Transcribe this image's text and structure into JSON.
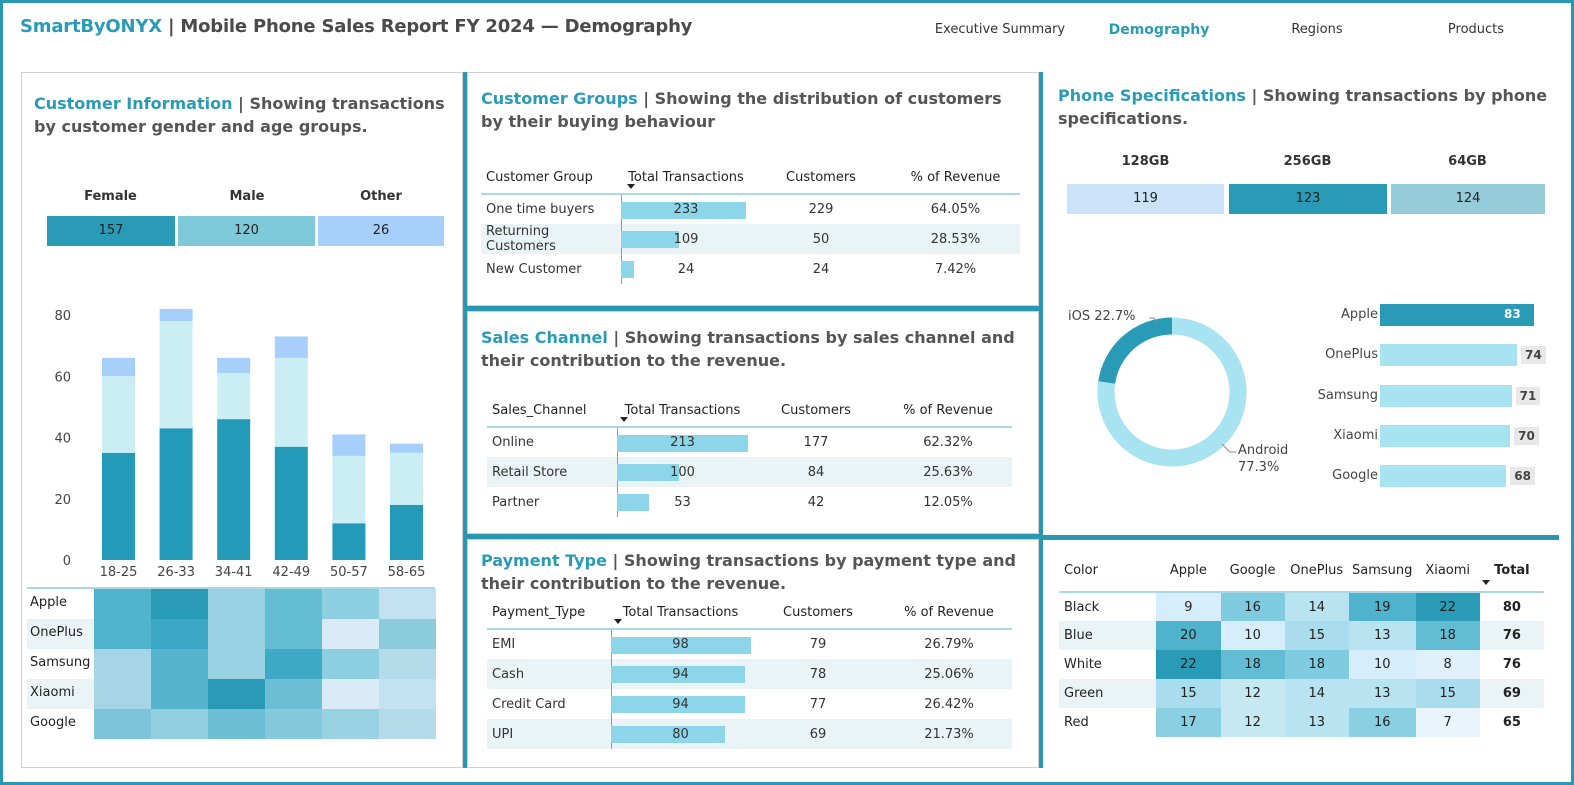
{
  "header": {
    "brand": "SmartByONYX",
    "title": " | Mobile Phone Sales Report FY 2024 — Demography",
    "nav": [
      "Executive Summary",
      "Demography",
      "Regions",
      "Products"
    ],
    "active": "Demography"
  },
  "customer_info": {
    "title_accent": "Customer Information",
    "title_rest": " | Showing transactions by customer gender and age groups.",
    "genders": [
      {
        "label": "Female",
        "value": "157",
        "color": "#2a9bb7"
      },
      {
        "label": "Male",
        "value": "120",
        "color": "#7ecad9"
      },
      {
        "label": "Other",
        "value": "26",
        "color": "#a6cffb"
      }
    ],
    "heatmap_rows": [
      "Apple",
      "OnePlus",
      "Samsung",
      "Xiaomi",
      "Google"
    ]
  },
  "chart_data": {
    "type": "bar",
    "stacked": true,
    "categories": [
      "18-25",
      "26-33",
      "34-41",
      "42-49",
      "50-57",
      "58-65"
    ],
    "series": [
      {
        "values": [
          35,
          43,
          46,
          37,
          12,
          18
        ],
        "color": "#239ab7"
      },
      {
        "values": [
          25,
          35,
          15,
          29,
          22,
          17
        ],
        "color": "#cbeef4"
      },
      {
        "values": [
          6,
          4,
          5,
          7,
          7,
          3
        ],
        "color": "#a6cffb"
      }
    ],
    "yticks": [
      "0",
      "20",
      "40",
      "60",
      "80"
    ],
    "ylim": [
      0,
      80
    ]
  },
  "customer_groups": {
    "title_accent": "Customer Groups",
    "title_rest": " | Showing the distribution of customers by their buying behaviour",
    "columns": [
      "Customer Group",
      "Total Transactions",
      "Customers",
      "% of Revenue"
    ],
    "rows": [
      {
        "name": "One time buyers",
        "tx": "233",
        "tx_frac": 0.54,
        "customers": "229",
        "rev": "64.05%"
      },
      {
        "name": "Returning Customers",
        "tx": "109",
        "tx_frac": 0.25,
        "customers": "50",
        "rev": "28.53%"
      },
      {
        "name": "New Customer",
        "tx": "24",
        "tx_frac": 0.055,
        "customers": "24",
        "rev": "7.42%"
      }
    ]
  },
  "sales_channel": {
    "title_accent": "Sales Channel",
    "title_rest": " | Showing transactions by sales channel and their contribution to the revenue.",
    "columns": [
      "Sales_Channel",
      "Total Transactions",
      "Customers",
      "% of Revenue"
    ],
    "rows": [
      {
        "name": "Online",
        "tx": "213",
        "tx_frac": 0.57,
        "customers": "177",
        "rev": "62.32%"
      },
      {
        "name": "Retail Store",
        "tx": "100",
        "tx_frac": 0.27,
        "customers": "84",
        "rev": "25.63%"
      },
      {
        "name": "Partner",
        "tx": "53",
        "tx_frac": 0.14,
        "customers": "42",
        "rev": "12.05%"
      }
    ]
  },
  "payment_type": {
    "title_accent": "Payment Type",
    "title_rest": " | Showing transactions by payment type and their contribution to the revenue.",
    "columns": [
      "Payment_Type",
      "Total Transactions",
      "Customers",
      "% of Revenue"
    ],
    "rows": [
      {
        "name": "EMI",
        "tx": "98",
        "tx_frac": 0.57,
        "customers": "79",
        "rev": "26.79%"
      },
      {
        "name": "Cash",
        "tx": "94",
        "tx_frac": 0.545,
        "customers": "78",
        "rev": "25.06%"
      },
      {
        "name": "Credit Card",
        "tx": "94",
        "tx_frac": 0.545,
        "customers": "77",
        "rev": "26.42%"
      },
      {
        "name": "UPI",
        "tx": "80",
        "tx_frac": 0.465,
        "customers": "69",
        "rev": "21.73%"
      }
    ]
  },
  "phone_specs": {
    "title_accent": "Phone Specifications",
    "title_rest": " | Showing transactions by phone specifications.",
    "storage": [
      {
        "label": "128GB",
        "value": "119",
        "color": "#cbe3f8"
      },
      {
        "label": "256GB",
        "value": "123",
        "color": "#2a9bb7"
      },
      {
        "label": "64GB",
        "value": "124",
        "color": "#94cdd9"
      }
    ],
    "donut": [
      {
        "label": "iOS 22.7%",
        "value": 22.7,
        "color": "#2a9bb7"
      },
      {
        "label_line1": "Android",
        "label_line2": "77.3%",
        "value": 77.3,
        "color": "#a8e3f1"
      }
    ],
    "brands": [
      {
        "name": "Apple",
        "value": "83",
        "frac": 1.0,
        "color": "#2a9bb7"
      },
      {
        "name": "OnePlus",
        "value": "74",
        "frac": 0.89,
        "color": "#a8e3f1"
      },
      {
        "name": "Samsung",
        "value": "71",
        "frac": 0.855,
        "color": "#a8e3f1"
      },
      {
        "name": "Xiaomi",
        "value": "70",
        "frac": 0.845,
        "color": "#a8e3f1"
      },
      {
        "name": "Google",
        "value": "68",
        "frac": 0.82,
        "color": "#a8e3f1"
      }
    ]
  },
  "color_matrix": {
    "columns": [
      "Color",
      "Apple",
      "Google",
      "OnePlus",
      "Samsung",
      "Xiaomi",
      "Total"
    ],
    "rows": [
      {
        "color": "Black",
        "values": [
          "9",
          "16",
          "14",
          "19",
          "22"
        ],
        "total": "80"
      },
      {
        "color": "Blue",
        "values": [
          "20",
          "10",
          "15",
          "13",
          "18"
        ],
        "total": "76"
      },
      {
        "color": "White",
        "values": [
          "22",
          "18",
          "18",
          "10",
          "8"
        ],
        "total": "76"
      },
      {
        "color": "Green",
        "values": [
          "15",
          "12",
          "14",
          "13",
          "15"
        ],
        "total": "69"
      },
      {
        "color": "Red",
        "values": [
          "17",
          "12",
          "13",
          "16",
          "7"
        ],
        "total": "65"
      }
    ]
  }
}
